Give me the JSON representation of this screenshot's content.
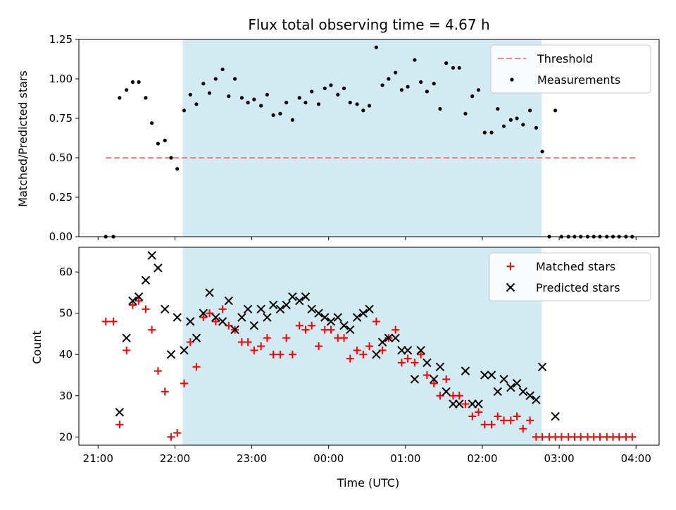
{
  "chart_data": [
    {
      "type": "scatter",
      "title": "Flux total observing time = 4.67 h",
      "ylabel": "Matched/Predicted stars",
      "xlabel": "",
      "ylim": [
        0,
        1.25
      ],
      "yticks": [
        "0.00",
        "0.25",
        "0.50",
        "0.75",
        "1.00",
        "1.25"
      ],
      "shaded_span_hours": [
        22.1,
        26.77
      ],
      "threshold_line": {
        "y": 0.5,
        "x_range_hours": [
          21.1,
          28.0
        ],
        "color": "#ff7f7f"
      },
      "legend_position": "top-right",
      "legend": [
        "Threshold",
        "Measurements"
      ],
      "series": [
        {
          "name": "Measurements",
          "color": "#000000",
          "x_hours": [
            21.1,
            21.2,
            21.28,
            21.37,
            21.45,
            21.53,
            21.62,
            21.7,
            21.78,
            21.87,
            21.95,
            22.03,
            22.12,
            22.2,
            22.28,
            22.37,
            22.45,
            22.53,
            22.62,
            22.7,
            22.78,
            22.87,
            22.95,
            23.03,
            23.12,
            23.2,
            23.28,
            23.37,
            23.45,
            23.53,
            23.62,
            23.7,
            23.78,
            23.87,
            23.95,
            24.03,
            24.12,
            24.2,
            24.28,
            24.37,
            24.45,
            24.53,
            24.62,
            24.7,
            24.78,
            24.87,
            24.95,
            25.03,
            25.12,
            25.2,
            25.28,
            25.37,
            25.45,
            25.53,
            25.62,
            25.7,
            25.78,
            25.87,
            25.95,
            26.03,
            26.12,
            26.2,
            26.28,
            26.37,
            26.45,
            26.53,
            26.62,
            26.7,
            26.78,
            26.87,
            26.95,
            27.03,
            27.12,
            27.2,
            27.28,
            27.37,
            27.45,
            27.53,
            27.62,
            27.7,
            27.78,
            27.87,
            27.95
          ],
          "y": [
            0.0,
            0.0,
            0.88,
            0.93,
            0.98,
            0.98,
            0.88,
            0.72,
            0.59,
            0.61,
            0.5,
            0.43,
            0.8,
            0.9,
            0.84,
            0.97,
            0.91,
            1.0,
            1.06,
            0.89,
            1.0,
            0.88,
            0.85,
            0.87,
            0.83,
            0.9,
            0.77,
            0.78,
            0.85,
            0.74,
            0.88,
            0.85,
            0.92,
            0.84,
            0.94,
            0.96,
            0.9,
            0.94,
            0.85,
            0.84,
            0.8,
            0.83,
            1.2,
            0.96,
            1.0,
            1.04,
            0.93,
            0.95,
            1.12,
            0.98,
            0.92,
            0.97,
            0.81,
            1.1,
            1.07,
            1.07,
            0.78,
            0.89,
            0.93,
            0.66,
            0.66,
            0.81,
            0.7,
            0.74,
            0.75,
            0.71,
            0.8,
            0.69,
            0.54,
            0.0,
            0.8,
            0.0,
            0.0,
            0.0,
            0.0,
            0.0,
            0.0,
            0.0,
            0.0,
            0.0,
            0.0,
            0.0,
            0.0
          ]
        }
      ]
    },
    {
      "type": "scatter",
      "title": "",
      "ylabel": "Count",
      "xlabel": "Time (UTC)",
      "ylim": [
        18,
        66
      ],
      "yticks": [
        "20",
        "30",
        "40",
        "50",
        "60"
      ],
      "xlim_hours": [
        20.75,
        28.3
      ],
      "xticks_hours": [
        21,
        22,
        23,
        24,
        25,
        26,
        27,
        28
      ],
      "xticks": [
        "21:00",
        "22:00",
        "23:00",
        "00:00",
        "01:00",
        "02:00",
        "03:00",
        "04:00"
      ],
      "shaded_span_hours": [
        22.1,
        26.77
      ],
      "legend_position": "top-right",
      "legend": [
        "Matched stars",
        "Predicted stars"
      ],
      "series": [
        {
          "name": "Matched stars",
          "marker": "plus",
          "color": "#ff0000",
          "x_hours": [
            21.1,
            21.2,
            21.28,
            21.37,
            21.45,
            21.53,
            21.62,
            21.7,
            21.78,
            21.87,
            21.95,
            22.03,
            22.12,
            22.2,
            22.28,
            22.37,
            22.45,
            22.53,
            22.62,
            22.7,
            22.78,
            22.87,
            22.95,
            23.03,
            23.12,
            23.2,
            23.28,
            23.37,
            23.45,
            23.53,
            23.62,
            23.7,
            23.78,
            23.87,
            23.95,
            24.03,
            24.12,
            24.2,
            24.28,
            24.37,
            24.45,
            24.53,
            24.62,
            24.7,
            24.78,
            24.87,
            24.95,
            25.03,
            25.12,
            25.2,
            25.28,
            25.37,
            25.45,
            25.53,
            25.62,
            25.7,
            25.78,
            25.87,
            25.95,
            26.03,
            26.12,
            26.2,
            26.28,
            26.37,
            26.45,
            26.53,
            26.62,
            26.7,
            26.78,
            26.87,
            26.95,
            27.03,
            27.12,
            27.2,
            27.28,
            27.37,
            27.45,
            27.53,
            27.62,
            27.7,
            27.78,
            27.87,
            27.95
          ],
          "y": [
            48,
            48,
            23,
            41,
            52,
            53,
            51,
            46,
            36,
            31,
            20,
            21,
            33,
            43,
            37,
            49,
            50,
            48,
            51,
            47,
            46,
            43,
            43,
            41,
            42,
            44,
            40,
            40,
            44,
            40,
            47,
            46,
            47,
            42,
            46,
            46,
            44,
            44,
            39,
            41,
            40,
            42,
            48,
            41,
            44,
            46,
            38,
            39,
            38,
            40,
            35,
            33,
            30,
            34,
            30,
            30,
            28,
            25,
            26,
            23,
            23,
            25,
            24,
            24,
            25,
            22,
            24,
            20,
            20,
            20,
            20,
            20,
            20,
            20,
            20,
            20,
            20,
            20,
            20,
            20,
            20,
            20,
            20
          ]
        },
        {
          "name": "Predicted stars",
          "marker": "x",
          "color": "#000000",
          "x_hours": [
            21.28,
            21.37,
            21.45,
            21.53,
            21.62,
            21.7,
            21.78,
            21.87,
            21.95,
            22.03,
            22.12,
            22.2,
            22.28,
            22.37,
            22.45,
            22.53,
            22.62,
            22.7,
            22.78,
            22.87,
            22.95,
            23.03,
            23.12,
            23.2,
            23.28,
            23.37,
            23.45,
            23.53,
            23.62,
            23.7,
            23.78,
            23.87,
            23.95,
            24.03,
            24.12,
            24.2,
            24.28,
            24.37,
            24.45,
            24.53,
            24.62,
            24.7,
            24.78,
            24.87,
            24.95,
            25.03,
            25.12,
            25.2,
            25.28,
            25.37,
            25.45,
            25.53,
            25.62,
            25.7,
            25.78,
            25.87,
            25.95,
            26.03,
            26.12,
            26.2,
            26.28,
            26.37,
            26.45,
            26.53,
            26.62,
            26.7,
            26.78,
            26.95
          ],
          "y": [
            26,
            44,
            53,
            54,
            58,
            64,
            61,
            51,
            40,
            49,
            41,
            48,
            44,
            50,
            55,
            49,
            48,
            53,
            46,
            49,
            51,
            47,
            51,
            49,
            52,
            51,
            52,
            54,
            53,
            54,
            51,
            50,
            49,
            48,
            49,
            47,
            46,
            49,
            50,
            51,
            40,
            43,
            44,
            44,
            41,
            41,
            34,
            41,
            38,
            34,
            37,
            31,
            28,
            28,
            36,
            28,
            28,
            35,
            35,
            31,
            34,
            32,
            33,
            31,
            30,
            29,
            37,
            25
          ]
        }
      ]
    }
  ]
}
